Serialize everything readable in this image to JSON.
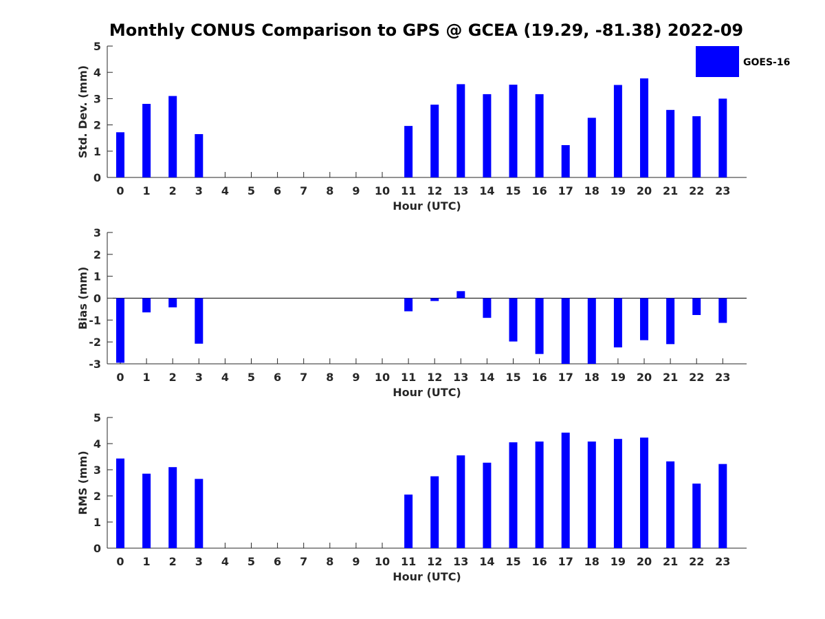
{
  "title": "Monthly CONUS Comparison to GPS @ GCEA (19.29, -81.38) 2022-09",
  "legend": {
    "label": "GOES-16",
    "color": "#0000ff",
    "placement": "top-right"
  },
  "chart_data": [
    {
      "type": "bar",
      "name": "std_dev",
      "xlabel": "Hour (UTC)",
      "ylabel": "Std. Dev. (mm)",
      "ylim": [
        0,
        5
      ],
      "yticks": [
        0,
        1,
        2,
        3,
        4,
        5
      ],
      "categories": [
        "0",
        "1",
        "2",
        "3",
        "4",
        "5",
        "6",
        "7",
        "8",
        "9",
        "10",
        "11",
        "12",
        "13",
        "14",
        "15",
        "16",
        "17",
        "18",
        "19",
        "20",
        "21",
        "22",
        "23"
      ],
      "series": [
        {
          "name": "GOES-16",
          "values": [
            1.72,
            2.8,
            3.1,
            1.65,
            null,
            null,
            null,
            null,
            null,
            null,
            null,
            1.96,
            2.77,
            3.55,
            3.17,
            3.53,
            3.17,
            1.23,
            2.27,
            3.52,
            3.77,
            2.57,
            2.33,
            3.0
          ]
        }
      ]
    },
    {
      "type": "bar",
      "name": "bias",
      "xlabel": "Hour (UTC)",
      "ylabel": "Bias (mm)",
      "ylim": [
        -3,
        3
      ],
      "yticks": [
        -3,
        -2,
        -1,
        0,
        1,
        2,
        3
      ],
      "categories": [
        "0",
        "1",
        "2",
        "3",
        "4",
        "5",
        "6",
        "7",
        "8",
        "9",
        "10",
        "11",
        "12",
        "13",
        "14",
        "15",
        "16",
        "17",
        "18",
        "19",
        "20",
        "21",
        "22",
        "23"
      ],
      "series": [
        {
          "name": "GOES-16",
          "values": [
            -2.95,
            -0.65,
            -0.42,
            -2.08,
            null,
            null,
            null,
            null,
            null,
            null,
            null,
            -0.6,
            -0.13,
            0.32,
            -0.9,
            -1.98,
            -2.55,
            -3.0,
            -3.0,
            -2.25,
            -1.92,
            -2.1,
            -0.77,
            -1.13
          ]
        }
      ]
    },
    {
      "type": "bar",
      "name": "rms",
      "xlabel": "Hour (UTC)",
      "ylabel": "RMS (mm)",
      "ylim": [
        0,
        5
      ],
      "yticks": [
        0,
        1,
        2,
        3,
        4,
        5
      ],
      "categories": [
        "0",
        "1",
        "2",
        "3",
        "4",
        "5",
        "6",
        "7",
        "8",
        "9",
        "10",
        "11",
        "12",
        "13",
        "14",
        "15",
        "16",
        "17",
        "18",
        "19",
        "20",
        "21",
        "22",
        "23"
      ],
      "series": [
        {
          "name": "GOES-16",
          "values": [
            3.43,
            2.85,
            3.1,
            2.65,
            null,
            null,
            null,
            null,
            null,
            null,
            null,
            2.05,
            2.75,
            3.55,
            3.27,
            4.05,
            4.08,
            4.42,
            4.08,
            4.18,
            4.23,
            3.32,
            2.47,
            3.22
          ]
        }
      ]
    }
  ]
}
